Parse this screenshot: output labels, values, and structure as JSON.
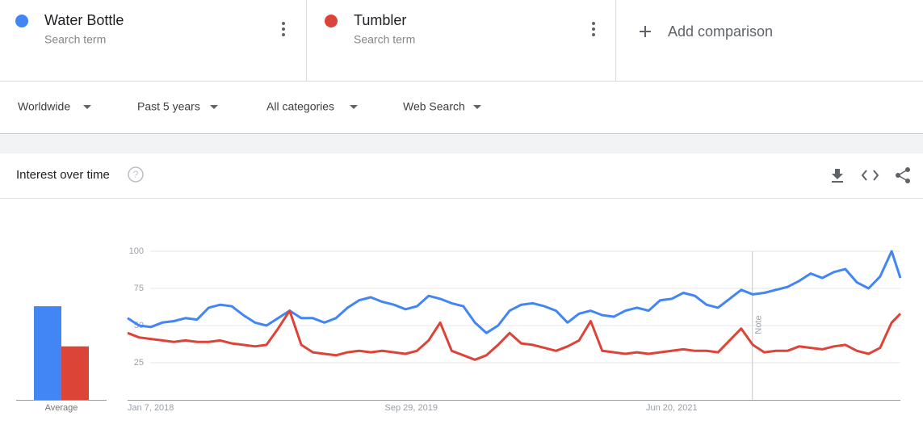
{
  "term_cards": [
    {
      "subtitle": "Search term"
    },
    {
      "subtitle": "Search term"
    }
  ],
  "add_comparison": "Add comparison",
  "filters": [
    "Worldwide",
    "Past 5 years",
    "All categories",
    "Web Search"
  ],
  "section_title": "Interest over time",
  "chart_data": {
    "type": "line",
    "x": [
      "2017-11-12",
      "2017-12-10",
      "2018-01-07",
      "2018-02-04",
      "2018-03-04",
      "2018-04-01",
      "2018-04-29",
      "2018-05-27",
      "2018-06-24",
      "2018-07-22",
      "2018-08-19",
      "2018-09-16",
      "2018-10-14",
      "2018-11-11",
      "2018-12-09",
      "2019-01-06",
      "2019-02-03",
      "2019-03-03",
      "2019-03-31",
      "2019-04-28",
      "2019-05-26",
      "2019-06-23",
      "2019-07-21",
      "2019-08-18",
      "2019-09-15",
      "2019-10-13",
      "2019-11-10",
      "2019-12-08",
      "2020-01-05",
      "2020-02-02",
      "2020-03-01",
      "2020-03-29",
      "2020-04-26",
      "2020-05-24",
      "2020-06-21",
      "2020-07-19",
      "2020-08-16",
      "2020-09-13",
      "2020-10-11",
      "2020-11-08",
      "2020-12-06",
      "2021-01-03",
      "2021-01-31",
      "2021-02-28",
      "2021-03-28",
      "2021-04-25",
      "2021-05-23",
      "2021-06-20",
      "2021-07-18",
      "2021-08-15",
      "2021-09-12",
      "2021-10-10",
      "2021-11-07",
      "2021-12-05",
      "2022-01-02",
      "2022-01-30",
      "2022-02-27",
      "2022-03-27",
      "2022-04-24",
      "2022-05-22",
      "2022-06-19",
      "2022-07-17",
      "2022-08-14",
      "2022-09-11",
      "2022-10-09",
      "2022-11-06",
      "2022-12-04",
      "2022-12-25"
    ],
    "series": [
      {
        "name": "Water Bottle",
        "color": "#4285f4",
        "average": 63,
        "values": [
          55,
          50,
          49,
          52,
          53,
          55,
          54,
          62,
          64,
          63,
          57,
          52,
          50,
          55,
          60,
          55,
          55,
          52,
          55,
          62,
          67,
          69,
          66,
          64,
          61,
          63,
          70,
          68,
          65,
          63,
          52,
          45,
          50,
          60,
          64,
          65,
          63,
          60,
          52,
          58,
          60,
          57,
          56,
          60,
          62,
          60,
          67,
          68,
          72,
          70,
          64,
          62,
          68,
          74,
          71,
          72,
          74,
          76,
          80,
          85,
          82,
          86,
          88,
          79,
          75,
          83,
          100,
          82
        ]
      },
      {
        "name": "Tumbler",
        "color": "#db4437",
        "average": 36,
        "values": [
          45,
          42,
          41,
          40,
          39,
          40,
          39,
          39,
          40,
          38,
          37,
          36,
          37,
          48,
          60,
          37,
          32,
          31,
          30,
          32,
          33,
          32,
          33,
          32,
          31,
          33,
          40,
          52,
          33,
          30,
          27,
          30,
          37,
          45,
          38,
          37,
          35,
          33,
          36,
          40,
          53,
          33,
          32,
          31,
          32,
          31,
          32,
          33,
          34,
          33,
          33,
          32,
          40,
          48,
          37,
          32,
          33,
          33,
          36,
          35,
          34,
          36,
          37,
          33,
          31,
          35,
          52,
          58
        ]
      }
    ],
    "average_label": "Average",
    "xlim": [
      "2017-11-12",
      "2022-12-25"
    ],
    "xticks": [
      {
        "value": "2018-01-07",
        "label": "Jan 7, 2018"
      },
      {
        "value": "2019-09-29",
        "label": "Sep 29, 2019"
      },
      {
        "value": "2021-06-20",
        "label": "Jun 20, 2021"
      }
    ],
    "ylim": [
      0,
      100
    ],
    "yticks": [
      25,
      50,
      75,
      100
    ],
    "grid": true,
    "annotations": [
      {
        "x": "2022-01-01",
        "text": "Note"
      }
    ]
  }
}
